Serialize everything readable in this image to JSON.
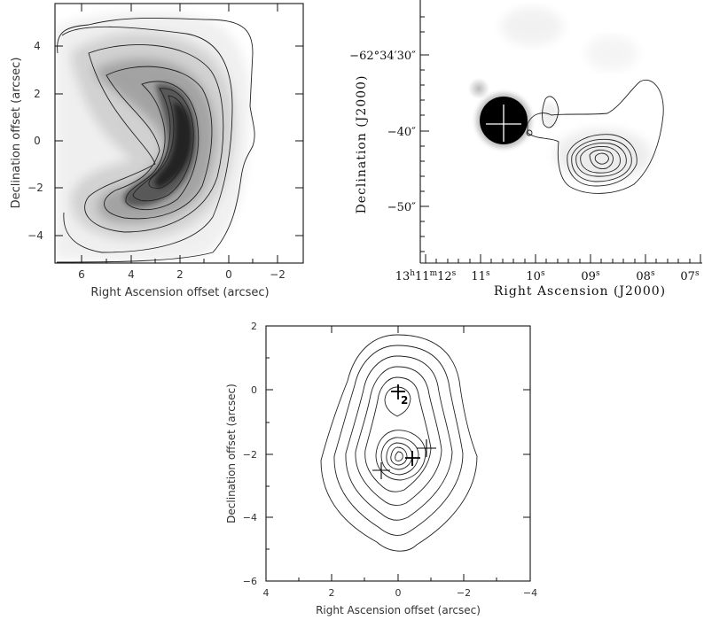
{
  "panels": [
    {
      "id": "top-left",
      "xlabel": "Right Ascension offset (arcsec)",
      "ylabel": "Declination offset (arcsec)",
      "x_ticks": [
        "6",
        "4",
        "2",
        "0",
        "−2"
      ],
      "y_ticks": [
        "4",
        "2",
        "0",
        "−2",
        "−4"
      ]
    },
    {
      "id": "top-right",
      "xlabel": "Right Ascension (J2000)",
      "ylabel": "Declination (J2000)",
      "x_ticks": [
        {
          "main": "13",
          "sup1": "h",
          "mid": "11",
          "sup2": "m",
          "sec": "12",
          "sup3": "s"
        },
        {
          "sec": "11",
          "sup3": "s"
        },
        {
          "sec": "10",
          "sup3": "s"
        },
        {
          "sec": "09",
          "sup3": "s"
        },
        {
          "sec": "08",
          "sup3": "s"
        },
        {
          "sec": "07",
          "sup3": "s"
        }
      ],
      "y_ticks": [
        "−62°34′30″",
        "−40″",
        "−50″"
      ]
    },
    {
      "id": "bottom",
      "xlabel": "Right Ascension offset (arcsec)",
      "ylabel": "Declination offset (arcsec)",
      "x_ticks": [
        "4",
        "2",
        "0",
        "−2",
        "−4"
      ],
      "y_ticks": [
        "2",
        "0",
        "−2",
        "−4",
        "−6"
      ],
      "marker_label": "2"
    }
  ]
}
